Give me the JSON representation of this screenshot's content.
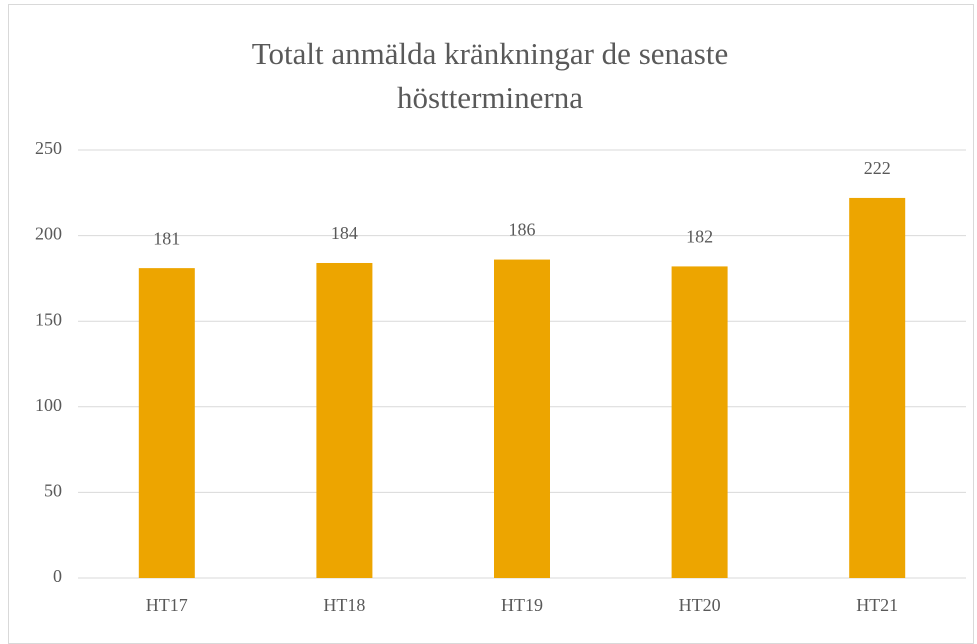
{
  "chart_data": {
    "type": "bar",
    "title": "Totalt anmälda kränkningar de senaste höstterminerna",
    "categories": [
      "HT17",
      "HT18",
      "HT19",
      "HT20",
      "HT21"
    ],
    "values": [
      181,
      184,
      186,
      182,
      222
    ],
    "color": "#eda500",
    "ylim": [
      0,
      250
    ],
    "yticks": [
      0,
      50,
      100,
      150,
      200,
      250
    ],
    "grid": true
  }
}
